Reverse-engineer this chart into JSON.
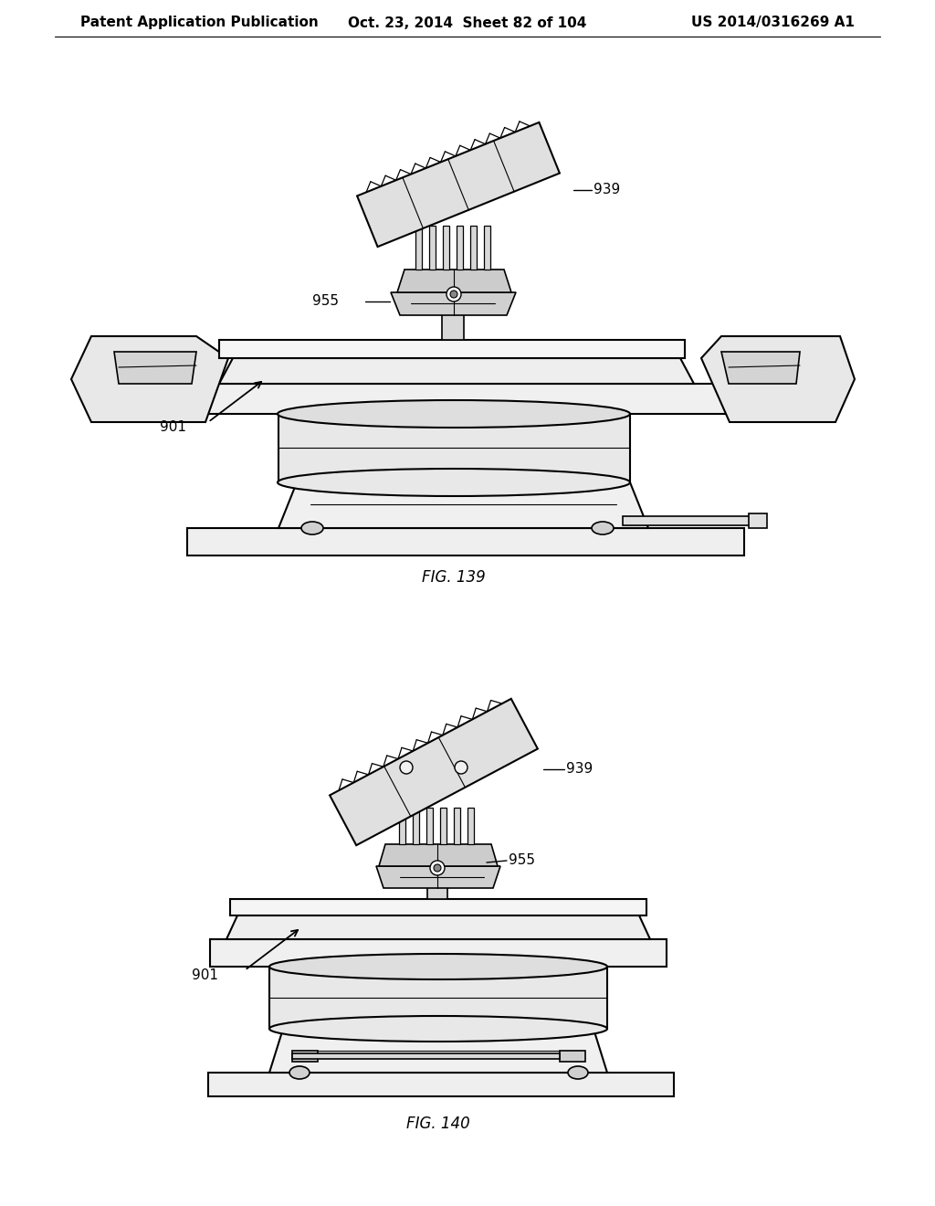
{
  "background_color": "#ffffff",
  "header_left": "Patent Application Publication",
  "header_center": "Oct. 23, 2014  Sheet 82 of 104",
  "header_right": "US 2014/0316269 A1",
  "header_fontsize": 11,
  "fig139_caption": "FIG. 139",
  "fig140_caption": "FIG. 140",
  "caption_fontsize": 12,
  "line_color": "#000000",
  "fill_light": "#f0f0f0",
  "fill_mid": "#e0e0e0",
  "fill_dark": "#c8c8c8"
}
